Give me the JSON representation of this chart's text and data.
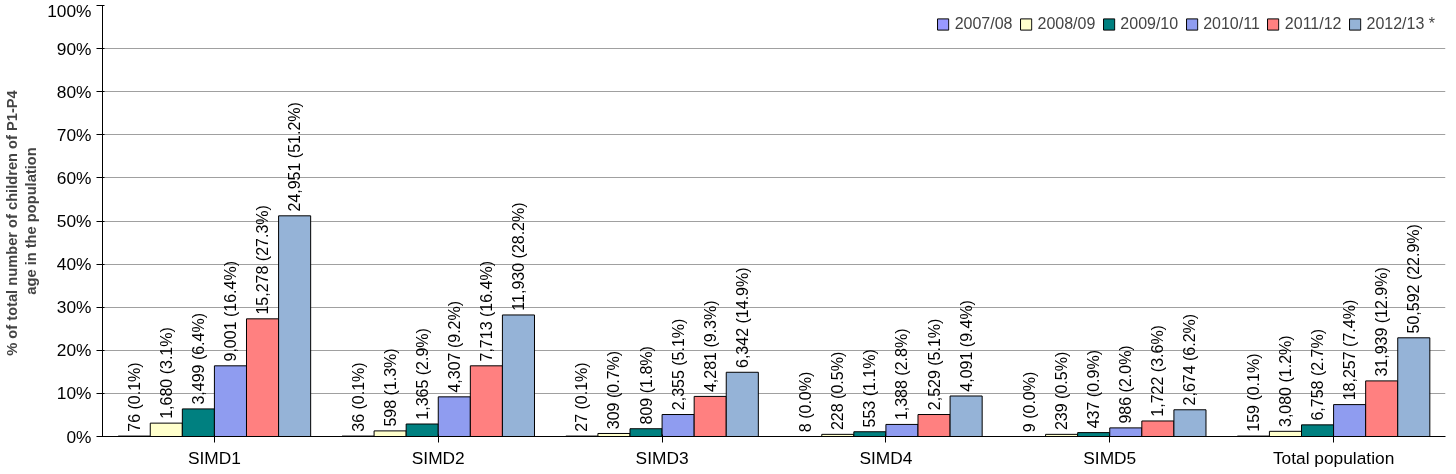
{
  "chart_data": {
    "type": "bar",
    "ylabel": "% of  total number of children of P1-P4\nage in the population",
    "categories": [
      "SIMD1",
      "SIMD2",
      "SIMD3",
      "SIMD4",
      "SIMD5",
      "Total population"
    ],
    "ylim": [
      0,
      100
    ],
    "yticks": [
      {
        "value": 0,
        "label": "0%"
      },
      {
        "value": 10,
        "label": "10%"
      },
      {
        "value": 20,
        "label": "20%"
      },
      {
        "value": 30,
        "label": "30%"
      },
      {
        "value": 40,
        "label": "40%"
      },
      {
        "value": 50,
        "label": "50%"
      },
      {
        "value": 60,
        "label": "60%"
      },
      {
        "value": 70,
        "label": "70%"
      },
      {
        "value": 80,
        "label": "80%"
      },
      {
        "value": 90,
        "label": "90%"
      },
      {
        "value": 100,
        "label": "100%"
      }
    ],
    "grid": "y",
    "legend": "top right",
    "series": [
      {
        "name": "2007/08",
        "color": "#9999ff",
        "values": [
          0.1,
          0.1,
          0.1,
          0.0,
          0.0,
          0.1
        ],
        "value_labels": [
          "76 (0.1%)",
          "36 (0.1%)",
          "27 (0.1%)",
          "8 (0.0%)",
          "9 (0.0%)",
          "159 (0.1%)"
        ]
      },
      {
        "name": "2008/09",
        "color": "#ffffcc",
        "values": [
          3.1,
          1.3,
          0.7,
          0.5,
          0.5,
          1.2
        ],
        "value_labels": [
          "1,680 (3.1%)",
          "598 (1.3%)",
          "309 (0.7%)",
          "228 (0.5%)",
          "239 (0.5%)",
          "3,080 (1.2%)"
        ]
      },
      {
        "name": "2009/10",
        "color": "#008080",
        "values": [
          6.4,
          2.9,
          1.8,
          1.1,
          0.9,
          2.7
        ],
        "value_labels": [
          "3,499 (6.4%)",
          "1,365 (2.9%)",
          "809 (1.8%)",
          "553 (1.1%)",
          "437 (0.9%)",
          "6,758 (2.7%)"
        ]
      },
      {
        "name": "2010/11",
        "color": "#8f9cf0",
        "values": [
          16.4,
          9.2,
          5.1,
          2.8,
          2.0,
          7.4
        ],
        "value_labels": [
          "9,001 (16.4%)",
          "4,307 (9.2%)",
          "2,355 (5.1%)",
          "1,388 (2.8%)",
          "986 (2.0%)",
          "18,257 (7.4%)"
        ]
      },
      {
        "name": "2011/12",
        "color": "#ff8080",
        "values": [
          27.3,
          16.4,
          9.3,
          5.1,
          3.6,
          12.9
        ],
        "value_labels": [
          "15,278 (27.3%)",
          "7,713 (16.4%)",
          "4,281 (9.3%)",
          "2,529 (5.1%)",
          "1,722 (3.6%)",
          "31,939 (12.9%)"
        ]
      },
      {
        "name": "2012/13 *",
        "color": "#95b3d7",
        "values": [
          51.2,
          28.2,
          14.9,
          9.4,
          6.2,
          22.9
        ],
        "value_labels": [
          "24,951 (51.2%)",
          "11,930 (28.2%)",
          "6,342 (14.9%)",
          "4,091 (9.4%)",
          "2,674 (6.2%)",
          "50,592 (22.9%)"
        ]
      }
    ]
  }
}
